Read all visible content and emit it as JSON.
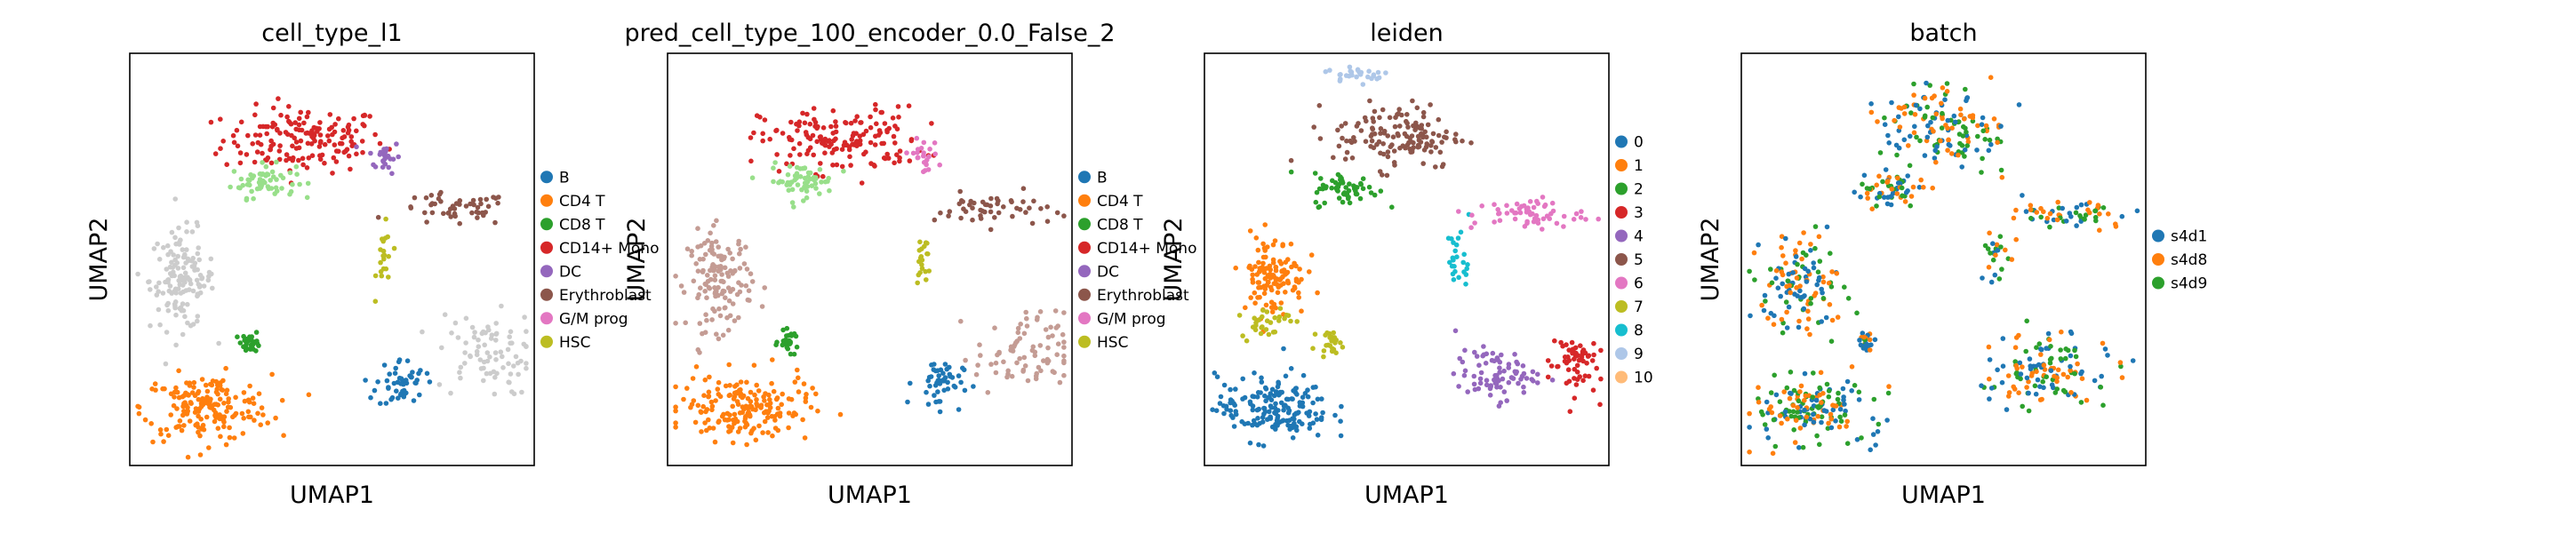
{
  "chart_data": [
    {
      "type": "scatter",
      "title": "cell_type_l1",
      "xlabel": "UMAP1",
      "ylabel": "UMAP2",
      "grid": false,
      "legend_position": "right",
      "legend": [
        {
          "label": "B",
          "color": "#1f77b4"
        },
        {
          "label": "CD4 T",
          "color": "#ff7f0e"
        },
        {
          "label": "CD8 T",
          "color": "#2ca02c"
        },
        {
          "label": "CD14+ Mono",
          "color": "#d62728"
        },
        {
          "label": "DC",
          "color": "#9467bd"
        },
        {
          "label": "Erythroblast",
          "color": "#8c564b"
        },
        {
          "label": "G/M prog",
          "color": "#e377c2"
        },
        {
          "label": "HSC",
          "color": "#bcbd22"
        }
      ],
      "clusters": [
        {
          "color": "#d62728",
          "x": 0.43,
          "y": 0.79,
          "sx": 0.1,
          "sy": 0.04,
          "n": 160
        },
        {
          "color": "#9467bd",
          "x": 0.63,
          "y": 0.75,
          "sx": 0.02,
          "sy": 0.02,
          "n": 24
        },
        {
          "color": "#98df8a",
          "x": 0.33,
          "y": 0.69,
          "sx": 0.04,
          "sy": 0.02,
          "n": 60
        },
        {
          "color": "#cccccc",
          "x": 0.13,
          "y": 0.45,
          "sx": 0.04,
          "sy": 0.06,
          "n": 140
        },
        {
          "color": "#8c564b",
          "x": 0.8,
          "y": 0.62,
          "sx": 0.07,
          "sy": 0.02,
          "n": 50
        },
        {
          "color": "#bcbd22",
          "x": 0.63,
          "y": 0.5,
          "sx": 0.01,
          "sy": 0.04,
          "n": 20
        },
        {
          "color": "#2ca02c",
          "x": 0.3,
          "y": 0.3,
          "sx": 0.012,
          "sy": 0.012,
          "n": 30
        },
        {
          "color": "#ff7f0e",
          "x": 0.19,
          "y": 0.14,
          "sx": 0.08,
          "sy": 0.04,
          "n": 180
        },
        {
          "color": "#1f77b4",
          "x": 0.67,
          "y": 0.2,
          "sx": 0.03,
          "sy": 0.03,
          "n": 50
        },
        {
          "color": "#cccccc",
          "x": 0.88,
          "y": 0.27,
          "sx": 0.06,
          "sy": 0.05,
          "n": 80
        }
      ]
    },
    {
      "type": "scatter",
      "title": "pred_cell_type_100_encoder_0.0_False_2",
      "xlabel": "UMAP1",
      "ylabel": "UMAP2",
      "grid": false,
      "legend_position": "right",
      "legend": [
        {
          "label": "B",
          "color": "#1f77b4"
        },
        {
          "label": "CD4 T",
          "color": "#ff7f0e"
        },
        {
          "label": "CD8 T",
          "color": "#2ca02c"
        },
        {
          "label": "CD14+ Mono",
          "color": "#d62728"
        },
        {
          "label": "DC",
          "color": "#9467bd"
        },
        {
          "label": "Erythroblast",
          "color": "#8c564b"
        },
        {
          "label": "G/M prog",
          "color": "#e377c2"
        },
        {
          "label": "HSC",
          "color": "#bcbd22"
        }
      ],
      "clusters": [
        {
          "color": "#d62728",
          "x": 0.43,
          "y": 0.79,
          "sx": 0.1,
          "sy": 0.04,
          "n": 160
        },
        {
          "color": "#e377c2",
          "x": 0.63,
          "y": 0.75,
          "sx": 0.02,
          "sy": 0.02,
          "n": 24
        },
        {
          "color": "#98df8a",
          "x": 0.33,
          "y": 0.69,
          "sx": 0.04,
          "sy": 0.02,
          "n": 60
        },
        {
          "color": "#c49c94",
          "x": 0.13,
          "y": 0.45,
          "sx": 0.04,
          "sy": 0.06,
          "n": 140
        },
        {
          "color": "#8c564b",
          "x": 0.8,
          "y": 0.62,
          "sx": 0.07,
          "sy": 0.02,
          "n": 50
        },
        {
          "color": "#bcbd22",
          "x": 0.63,
          "y": 0.5,
          "sx": 0.01,
          "sy": 0.04,
          "n": 20
        },
        {
          "color": "#2ca02c",
          "x": 0.3,
          "y": 0.3,
          "sx": 0.012,
          "sy": 0.012,
          "n": 30
        },
        {
          "color": "#ff7f0e",
          "x": 0.19,
          "y": 0.14,
          "sx": 0.08,
          "sy": 0.04,
          "n": 180
        },
        {
          "color": "#1f77b4",
          "x": 0.67,
          "y": 0.2,
          "sx": 0.03,
          "sy": 0.03,
          "n": 50
        },
        {
          "color": "#c49c94",
          "x": 0.88,
          "y": 0.27,
          "sx": 0.06,
          "sy": 0.05,
          "n": 80
        }
      ]
    },
    {
      "type": "scatter",
      "title": "leiden",
      "xlabel": "UMAP1",
      "ylabel": "UMAP2",
      "grid": false,
      "legend_position": "right",
      "legend": [
        {
          "label": "0",
          "color": "#1f77b4"
        },
        {
          "label": "1",
          "color": "#ff7f0e"
        },
        {
          "label": "2",
          "color": "#2ca02c"
        },
        {
          "label": "3",
          "color": "#d62728"
        },
        {
          "label": "4",
          "color": "#9467bd"
        },
        {
          "label": "5",
          "color": "#8c564b"
        },
        {
          "label": "6",
          "color": "#e377c2"
        },
        {
          "label": "7",
          "color": "#bcbd22"
        },
        {
          "label": "8",
          "color": "#17becf"
        },
        {
          "label": "9",
          "color": "#aec7e8"
        },
        {
          "label": "10",
          "color": "#ffbb78"
        }
      ],
      "clusters": [
        {
          "color": "#8c564b",
          "x": 0.48,
          "y": 0.8,
          "sx": 0.08,
          "sy": 0.04,
          "n": 140
        },
        {
          "color": "#aec7e8",
          "x": 0.38,
          "y": 0.95,
          "sx": 0.04,
          "sy": 0.01,
          "n": 30
        },
        {
          "color": "#2ca02c",
          "x": 0.35,
          "y": 0.67,
          "sx": 0.04,
          "sy": 0.02,
          "n": 60
        },
        {
          "color": "#ff7f0e",
          "x": 0.17,
          "y": 0.46,
          "sx": 0.04,
          "sy": 0.05,
          "n": 120
        },
        {
          "color": "#bcbd22",
          "x": 0.15,
          "y": 0.35,
          "sx": 0.03,
          "sy": 0.02,
          "n": 30
        },
        {
          "color": "#bcbd22",
          "x": 0.31,
          "y": 0.3,
          "sx": 0.015,
          "sy": 0.012,
          "n": 24
        },
        {
          "color": "#17becf",
          "x": 0.63,
          "y": 0.5,
          "sx": 0.015,
          "sy": 0.04,
          "n": 25
        },
        {
          "color": "#e377c2",
          "x": 0.8,
          "y": 0.61,
          "sx": 0.07,
          "sy": 0.02,
          "n": 60
        },
        {
          "color": "#9467bd",
          "x": 0.72,
          "y": 0.22,
          "sx": 0.05,
          "sy": 0.03,
          "n": 80
        },
        {
          "color": "#d62728",
          "x": 0.91,
          "y": 0.25,
          "sx": 0.03,
          "sy": 0.04,
          "n": 60
        },
        {
          "color": "#1f77b4",
          "x": 0.17,
          "y": 0.14,
          "sx": 0.07,
          "sy": 0.04,
          "n": 170
        }
      ]
    },
    {
      "type": "scatter",
      "title": "batch",
      "xlabel": "UMAP1",
      "ylabel": "UMAP2",
      "grid": false,
      "legend_position": "right",
      "legend": [
        {
          "label": "s4d1",
          "color": "#1f77b4"
        },
        {
          "label": "s4d8",
          "color": "#ff7f0e"
        },
        {
          "label": "s4d9",
          "color": "#2ca02c"
        }
      ],
      "clusters": [
        {
          "color": "mix",
          "x": 0.5,
          "y": 0.82,
          "sx": 0.08,
          "sy": 0.05,
          "n": 160
        },
        {
          "color": "mix",
          "x": 0.37,
          "y": 0.67,
          "sx": 0.04,
          "sy": 0.02,
          "n": 60
        },
        {
          "color": "mix",
          "x": 0.15,
          "y": 0.44,
          "sx": 0.05,
          "sy": 0.06,
          "n": 130
        },
        {
          "color": "mix",
          "x": 0.31,
          "y": 0.3,
          "sx": 0.012,
          "sy": 0.012,
          "n": 24
        },
        {
          "color": "mix",
          "x": 0.63,
          "y": 0.5,
          "sx": 0.015,
          "sy": 0.04,
          "n": 25
        },
        {
          "color": "mix",
          "x": 0.82,
          "y": 0.61,
          "sx": 0.07,
          "sy": 0.02,
          "n": 60
        },
        {
          "color": "mix",
          "x": 0.76,
          "y": 0.23,
          "sx": 0.07,
          "sy": 0.04,
          "n": 140
        },
        {
          "color": "mix",
          "x": 0.17,
          "y": 0.14,
          "sx": 0.07,
          "sy": 0.04,
          "n": 170
        }
      ]
    }
  ]
}
